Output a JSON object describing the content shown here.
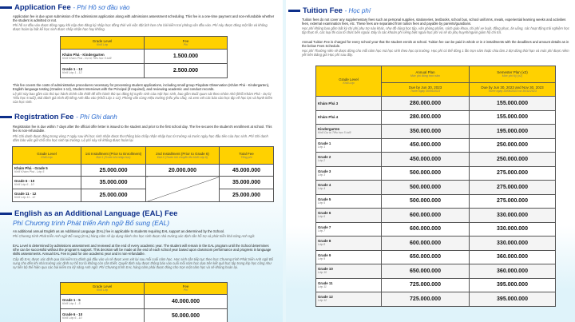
{
  "application": {
    "title": "Application Fee",
    "title_vi": "- Phí Hồ sơ đầu vào",
    "p1": "Application fee is due upon submission of the admissions application along with admissions assessment scheduling. This fee is a one-time payment and non-refundable whether the student is admitted or not.",
    "p1_vi": "Phí hồ sơ đầu vào được đóng ngay khi nộp đơn đăng ký nhập học đồng thời với việc đặt lịch hẹn cho bài kiểm tra/ phỏng vấn đầu vào. Phí này được đóng một lần và không được hoàn lại bất kể học sinh được chấp nhận học hay không.",
    "headers": [
      {
        "en": "Grade Level",
        "vi": "Khối Lớp"
      },
      {
        "en": "Fee",
        "vi": "Phí"
      }
    ],
    "rows": [
      {
        "grade": "Khám Phá - Kindergarten",
        "grade_vi": "Khối Khám Phá - Dự bị Tiểu học 5 tuổi",
        "fee": "1.500.000"
      },
      {
        "grade": "Grade 1 - 12",
        "grade_vi": "Khối Lớp 1 - 12",
        "fee": "2.500.000"
      }
    ],
    "p2": "This fee covers the costs of administrative procedures necessary for processing student applications, including small group Playdate Observation (Khám Phá - Kindergarten), English language testing (Grades 1-12), Student Interviews with the Principal (if required), and reviewing academic and conduct records.",
    "p2_vi": "Lệ phí này bao gồm các thủ tục hành chính cần thiết để tiến hành thủ tục đăng ký tuyển sinh của một học sinh, bao gồm Buổi quan sát theo nhóm nhỏ (khối Khám Phá - Dự bị Tiểu học 5 tuổi), Bài đánh giá trình độ tiếng Anh đầu vào (Khối Lớp 1-12), Phỏng vấn cùng Hiệu trưởng (nếu yêu cầu), và xem xét các báo cáo học tập về học lực và hạnh kiểm của học sinh."
  },
  "registration": {
    "title": "Registration Fee",
    "title_vi": "- Phí Ghi danh",
    "p1": "Registration fee is due within 7 days after the official offer letter is issued to the student and prior to the first school day. The fee secures the student's enrollment at school. This fee is non-refundable.",
    "p1_vi": "Phí Ghi danh được đóng trong vòng 7 ngày sau khi học sinh nhận được thư thông báo chấp nhận nhập học từ trường và trước ngày học đầu tiên của học sinh. Phí Ghi danh đảm bảo việc giữ chỗ cho học sinh tại trường. Lệ phí này sẽ không được hoàn lại.",
    "headers": [
      {
        "en": "Grade Level",
        "vi": "Khối Lớp"
      },
      {
        "en": "1st Installment (Prior to Enrollment)",
        "vi": "Đợt 1 (Trước khi nhập học)"
      },
      {
        "en": "2nd Installment (Prior to Grade 6)",
        "vi": "Đợt 2 (Trước khi chuyển lên khối Lớp 6)"
      },
      {
        "en": "Total Fee",
        "vi": "Tổng phí"
      }
    ],
    "rows": [
      {
        "grade": "Khám Phá - Grade 5",
        "grade_vi": "Khối Khám Phá - Lớp 5",
        "first": "25.000.000",
        "second": "20.000.000",
        "total": "45.000.000"
      },
      {
        "grade": "Grade 6 - 10",
        "grade_vi": "Khối Lớp 6 - 10",
        "first": "35.000.000",
        "total": "35.000.000"
      },
      {
        "grade": "Grade 11 - 12",
        "grade_vi": "Khối Lớp 11 - 12",
        "first": "25.000.000",
        "total": "25.000.000"
      }
    ]
  },
  "eal": {
    "title": "English as an Additional Language (EAL) Fee",
    "title_vi": "Phí Chương trình Phát triển Anh ngữ Bổ sung (EAL)",
    "p1": "An additional annual English as an Additional Language (EAL) fee is applicable to students requiring EAL support as determined by the School.",
    "p1_vi": "Phí Chương trình Phát triển Anh ngữ Bổ sung (EAL) hàng năm sẽ áp dụng dành cho học sinh được nhà trường xác định cần hỗ trợ và phát triển khả năng Anh ngữ.",
    "p2": "EAL Level is determined by admissions assessment and reviewed at the end of every academic year. The student will remain in the EAL program until the School determines s/he can be successful without the program's support. This decision will be made at the end of each school year based upon classroom performance and progress in language skills assessments. Annual EAL Fee is paid for one academic year and is non-refundable.",
    "p2_vi": "Cấp độ EAL được xác định qua bài kiểm tra đánh giá đầu vào và sẽ được xem xét lại sau mỗi cuối năm học. Học sinh cần tiếp tục theo học Chương trình Phát triển Anh ngữ Bổ sung cho đến khi nhà trường xác định sự hỗ trợ là không còn cần thiết. Quyết định này được thông báo vào cuối mỗi năm học dựa trên kết quả học tập trong lớp học cũng như sự tiến bộ thể hiện qua các bài kiểm tra kỹ năng Anh ngữ. Phí Chương trình EAL hàng năm phải được đóng cho trọn một năm học và sẽ không hoàn lại.",
    "headers": [
      {
        "en": "Grade Level",
        "vi": "Khối Lớp"
      },
      {
        "en": "Fee",
        "vi": "Phí"
      }
    ],
    "rows": [
      {
        "grade": "Grade 1 - 5",
        "grade_vi": "Khối Lớp 1 - 5",
        "fee": "40.000.000"
      },
      {
        "grade": "Grade 6 - 10",
        "grade_vi": "Khối Lớp 6 - 10",
        "fee": "50.000.000"
      }
    ]
  },
  "tuition": {
    "title": "Tuition Fee",
    "title_vi": "- Học phí",
    "p1": "Tuition fees do not cover any supplementary fees such as personal supplies, stationeries, textbooks, school bus, school uniforms, meals, experiential learning weeks and activities fees, external examination fees, etc. These fees are separated from tuition fees and payable by parents/guardians.",
    "p1_vi": "Học phí không bao gồm bất kỳ chi phí phụ trợ nào khác, như đồ dùng học tập, văn phòng phẩm, sách giáo khoa, chi phí xe buýt, đồng phục, ăn uống, các hoạt động trải nghiệm học tập thực tế, các loại thi của tổ chức bên ngoài. Đây là các khoản phí riêng biệt ngoài học phí và sẽ do phụ huynh/người giám hộ chi trả.",
    "p2": "Annual Tuition Fee is charged for every school year that the student enrols at school. Tuition fee can be paid in whole or in 2 installments with the deadlines and amount details as in the below Fees Schedule.",
    "p2_vi": "Học phí Thường niên sẽ được đóng cho mỗi năm học mà học sinh theo học tại trường. Học phí có thể đóng 1 lần trọn năm hoặc chia làm 2 đợt đúng thời hạn và mức phí được niêm yết trên Bảng giá Học phí sau đây.",
    "headers": {
      "grade": {
        "en": "Grade Level",
        "vi": "Khối Lớp"
      },
      "annual": {
        "en": "Annual Plan",
        "vi": "Mức phí đóng trọn năm",
        "due": "Due by Jun 30, 2023",
        "due_vi": "Trước ngày 30/06/2023"
      },
      "semester": {
        "en": "Semester Plan (x2)",
        "vi": "Mức phí Kỳ (x2)",
        "due": "Due by Jun 30, 2023 and Nov 30, 2023",
        "due_vi": "Trước ngày 30/06/2023 và 30/11/2023"
      }
    },
    "rows": [
      {
        "grade": "Khám Phá 3",
        "grade_vi": "",
        "annual": "280.000.000",
        "semester": "155.000.000"
      },
      {
        "grade": "Khám Phá 4",
        "grade_vi": "",
        "annual": "280.000.000",
        "semester": "155.000.000"
      },
      {
        "grade": "Kindergarten",
        "grade_vi": "Khối Dự bị Tiểu học 5 tuổi",
        "annual": "350.000.000",
        "semester": "195.000.000"
      },
      {
        "grade": "Grade 1",
        "grade_vi": "Lớp 1",
        "annual": "450.000.000",
        "semester": "250.000.000"
      },
      {
        "grade": "Grade 2",
        "grade_vi": "Lớp 2",
        "annual": "450.000.000",
        "semester": "250.000.000"
      },
      {
        "grade": "Grade 3",
        "grade_vi": "Lớp 3",
        "annual": "500.000.000",
        "semester": "275.000.000"
      },
      {
        "grade": "Grade 4",
        "grade_vi": "Lớp 4",
        "annual": "500.000.000",
        "semester": "275.000.000"
      },
      {
        "grade": "Grade 5",
        "grade_vi": "Lớp 5",
        "annual": "500.000.000",
        "semester": "275.000.000"
      },
      {
        "grade": "Grade 6",
        "grade_vi": "Lớp 6",
        "annual": "600.000.000",
        "semester": "330.000.000"
      },
      {
        "grade": "Grade 7",
        "grade_vi": "Lớp 7",
        "annual": "600.000.000",
        "semester": "330.000.000"
      },
      {
        "grade": "Grade 8",
        "grade_vi": "Lớp 8",
        "annual": "600.000.000",
        "semester": "330.000.000"
      },
      {
        "grade": "Grade 9",
        "grade_vi": "Lớp 9",
        "annual": "650.000.000",
        "semester": "360.000.000"
      },
      {
        "grade": "Grade 10",
        "grade_vi": "Lớp 10",
        "annual": "650.000.000",
        "semester": "360.000.000"
      },
      {
        "grade": "Grade 11",
        "grade_vi": "Lớp 11",
        "annual": "725.000.000",
        "semester": "395.000.000"
      },
      {
        "grade": "Grade 12",
        "grade_vi": "Lớp 12",
        "annual": "725.000.000",
        "semester": "395.000.000"
      }
    ]
  }
}
